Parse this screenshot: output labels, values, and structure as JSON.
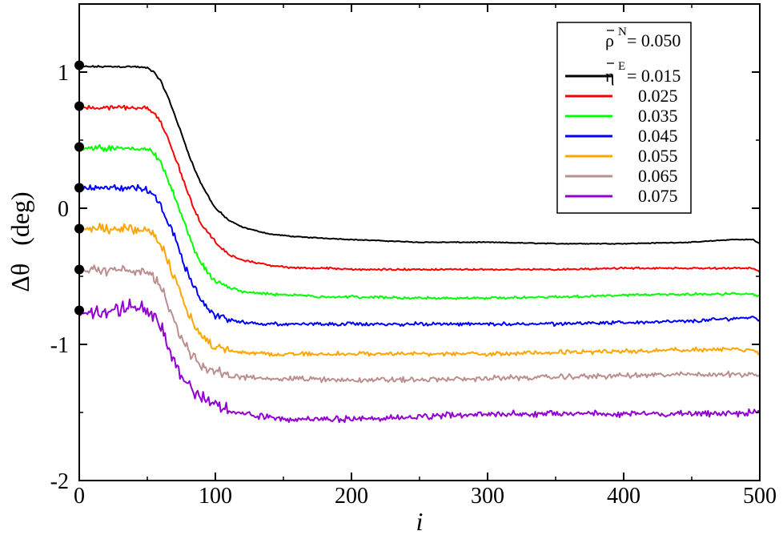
{
  "chart_data": {
    "type": "line",
    "xlabel": "i",
    "ylabel_symbol": "Δθ",
    "ylabel_unit": "(deg)",
    "xlim": [
      0,
      500
    ],
    "ylim": [
      -2,
      1.5
    ],
    "xticks": [
      0,
      100,
      200,
      300,
      400,
      500
    ],
    "xtick_labels": [
      "0",
      "100",
      "200",
      "300",
      "400",
      "500"
    ],
    "yticks": [
      -2,
      -1,
      0,
      1
    ],
    "ytick_labels": [
      "-2",
      "-1",
      "0",
      "1"
    ],
    "legend": {
      "header_symbol": "ρ",
      "header_sup": "N",
      "header_text": "= 0.050",
      "series_symbol": "η",
      "series_sup": "E",
      "series_prefix": "= ",
      "placement": "top-right"
    },
    "initial_markers": [
      1.05,
      0.75,
      0.45,
      0.15,
      -0.15,
      -0.45,
      -0.75
    ],
    "series": [
      {
        "name": "0.015",
        "color": "#000000",
        "noise": 0.004,
        "x": [
          0,
          20,
          40,
          50,
          55,
          60,
          65,
          70,
          75,
          80,
          85,
          90,
          100,
          110,
          120,
          140,
          160,
          180,
          200,
          250,
          300,
          350,
          400,
          450,
          480,
          495,
          498,
          500
        ],
        "values": [
          1.04,
          1.04,
          1.04,
          1.03,
          1.0,
          0.93,
          0.82,
          0.69,
          0.55,
          0.41,
          0.28,
          0.17,
          0.0,
          -0.09,
          -0.14,
          -0.19,
          -0.21,
          -0.22,
          -0.23,
          -0.25,
          -0.25,
          -0.26,
          -0.26,
          -0.25,
          -0.23,
          -0.23,
          -0.25,
          -0.26
        ]
      },
      {
        "name": "0.025",
        "color": "#ff0000",
        "noise": 0.008,
        "x": [
          0,
          20,
          40,
          50,
          55,
          60,
          65,
          70,
          75,
          80,
          85,
          90,
          100,
          110,
          120,
          140,
          160,
          180,
          200,
          250,
          300,
          350,
          400,
          450,
          480,
          495,
          498,
          500
        ],
        "values": [
          0.74,
          0.74,
          0.74,
          0.73,
          0.7,
          0.63,
          0.52,
          0.39,
          0.25,
          0.11,
          -0.02,
          -0.12,
          -0.25,
          -0.34,
          -0.38,
          -0.42,
          -0.44,
          -0.44,
          -0.45,
          -0.45,
          -0.45,
          -0.45,
          -0.44,
          -0.44,
          -0.44,
          -0.44,
          -0.46,
          -0.47
        ]
      },
      {
        "name": "0.035",
        "color": "#00ff00",
        "noise": 0.012,
        "x": [
          0,
          20,
          40,
          50,
          55,
          60,
          65,
          70,
          75,
          80,
          85,
          90,
          100,
          110,
          120,
          140,
          160,
          180,
          200,
          250,
          300,
          350,
          400,
          450,
          480,
          495,
          498,
          500
        ],
        "values": [
          0.44,
          0.44,
          0.44,
          0.43,
          0.4,
          0.33,
          0.22,
          0.09,
          -0.05,
          -0.18,
          -0.31,
          -0.41,
          -0.54,
          -0.58,
          -0.61,
          -0.63,
          -0.64,
          -0.65,
          -0.65,
          -0.66,
          -0.66,
          -0.65,
          -0.64,
          -0.63,
          -0.63,
          -0.63,
          -0.64,
          -0.64
        ]
      },
      {
        "name": "0.045",
        "color": "#0000ff",
        "noise": 0.016,
        "x": [
          0,
          20,
          40,
          50,
          55,
          60,
          65,
          70,
          75,
          80,
          85,
          90,
          100,
          110,
          120,
          140,
          160,
          180,
          200,
          250,
          300,
          350,
          400,
          450,
          480,
          495,
          498,
          500
        ],
        "values": [
          0.15,
          0.15,
          0.15,
          0.14,
          0.1,
          0.03,
          -0.08,
          -0.21,
          -0.35,
          -0.48,
          -0.59,
          -0.68,
          -0.78,
          -0.82,
          -0.84,
          -0.85,
          -0.85,
          -0.85,
          -0.85,
          -0.85,
          -0.85,
          -0.85,
          -0.84,
          -0.83,
          -0.81,
          -0.8,
          -0.81,
          -0.82
        ]
      },
      {
        "name": "0.055",
        "color": "#ffa500",
        "noise": 0.02,
        "x": [
          0,
          20,
          40,
          50,
          55,
          60,
          65,
          70,
          75,
          80,
          85,
          90,
          100,
          110,
          120,
          140,
          160,
          180,
          200,
          250,
          300,
          350,
          400,
          450,
          480,
          495,
          498,
          500
        ],
        "values": [
          -0.15,
          -0.15,
          -0.15,
          -0.16,
          -0.2,
          -0.27,
          -0.38,
          -0.51,
          -0.64,
          -0.77,
          -0.87,
          -0.95,
          -1.02,
          -1.05,
          -1.06,
          -1.07,
          -1.07,
          -1.07,
          -1.07,
          -1.07,
          -1.07,
          -1.06,
          -1.05,
          -1.04,
          -1.03,
          -1.04,
          -1.06,
          -1.07
        ]
      },
      {
        "name": "0.065",
        "color": "#bc8f8f",
        "noise": 0.024,
        "x": [
          0,
          20,
          40,
          50,
          55,
          60,
          65,
          70,
          75,
          80,
          85,
          90,
          100,
          110,
          120,
          140,
          160,
          180,
          200,
          250,
          300,
          350,
          400,
          450,
          480,
          495,
          498,
          500
        ],
        "values": [
          -0.45,
          -0.45,
          -0.45,
          -0.47,
          -0.51,
          -0.58,
          -0.69,
          -0.82,
          -0.94,
          -1.04,
          -1.11,
          -1.15,
          -1.2,
          -1.23,
          -1.24,
          -1.25,
          -1.25,
          -1.26,
          -1.26,
          -1.26,
          -1.25,
          -1.24,
          -1.23,
          -1.22,
          -1.22,
          -1.22,
          -1.22,
          -1.23
        ]
      },
      {
        "name": "0.075",
        "color": "#9400d3",
        "noise": 0.028,
        "x": [
          0,
          20,
          40,
          50,
          55,
          60,
          65,
          70,
          75,
          80,
          85,
          90,
          100,
          110,
          120,
          140,
          160,
          180,
          200,
          250,
          300,
          350,
          400,
          450,
          480,
          495,
          498,
          500
        ],
        "values": [
          -0.78,
          -0.76,
          -0.72,
          -0.74,
          -0.8,
          -0.88,
          -1.0,
          -1.13,
          -1.23,
          -1.3,
          -1.35,
          -1.39,
          -1.44,
          -1.49,
          -1.51,
          -1.54,
          -1.55,
          -1.55,
          -1.55,
          -1.53,
          -1.51,
          -1.51,
          -1.51,
          -1.51,
          -1.51,
          -1.5,
          -1.49,
          -1.49
        ]
      }
    ]
  }
}
